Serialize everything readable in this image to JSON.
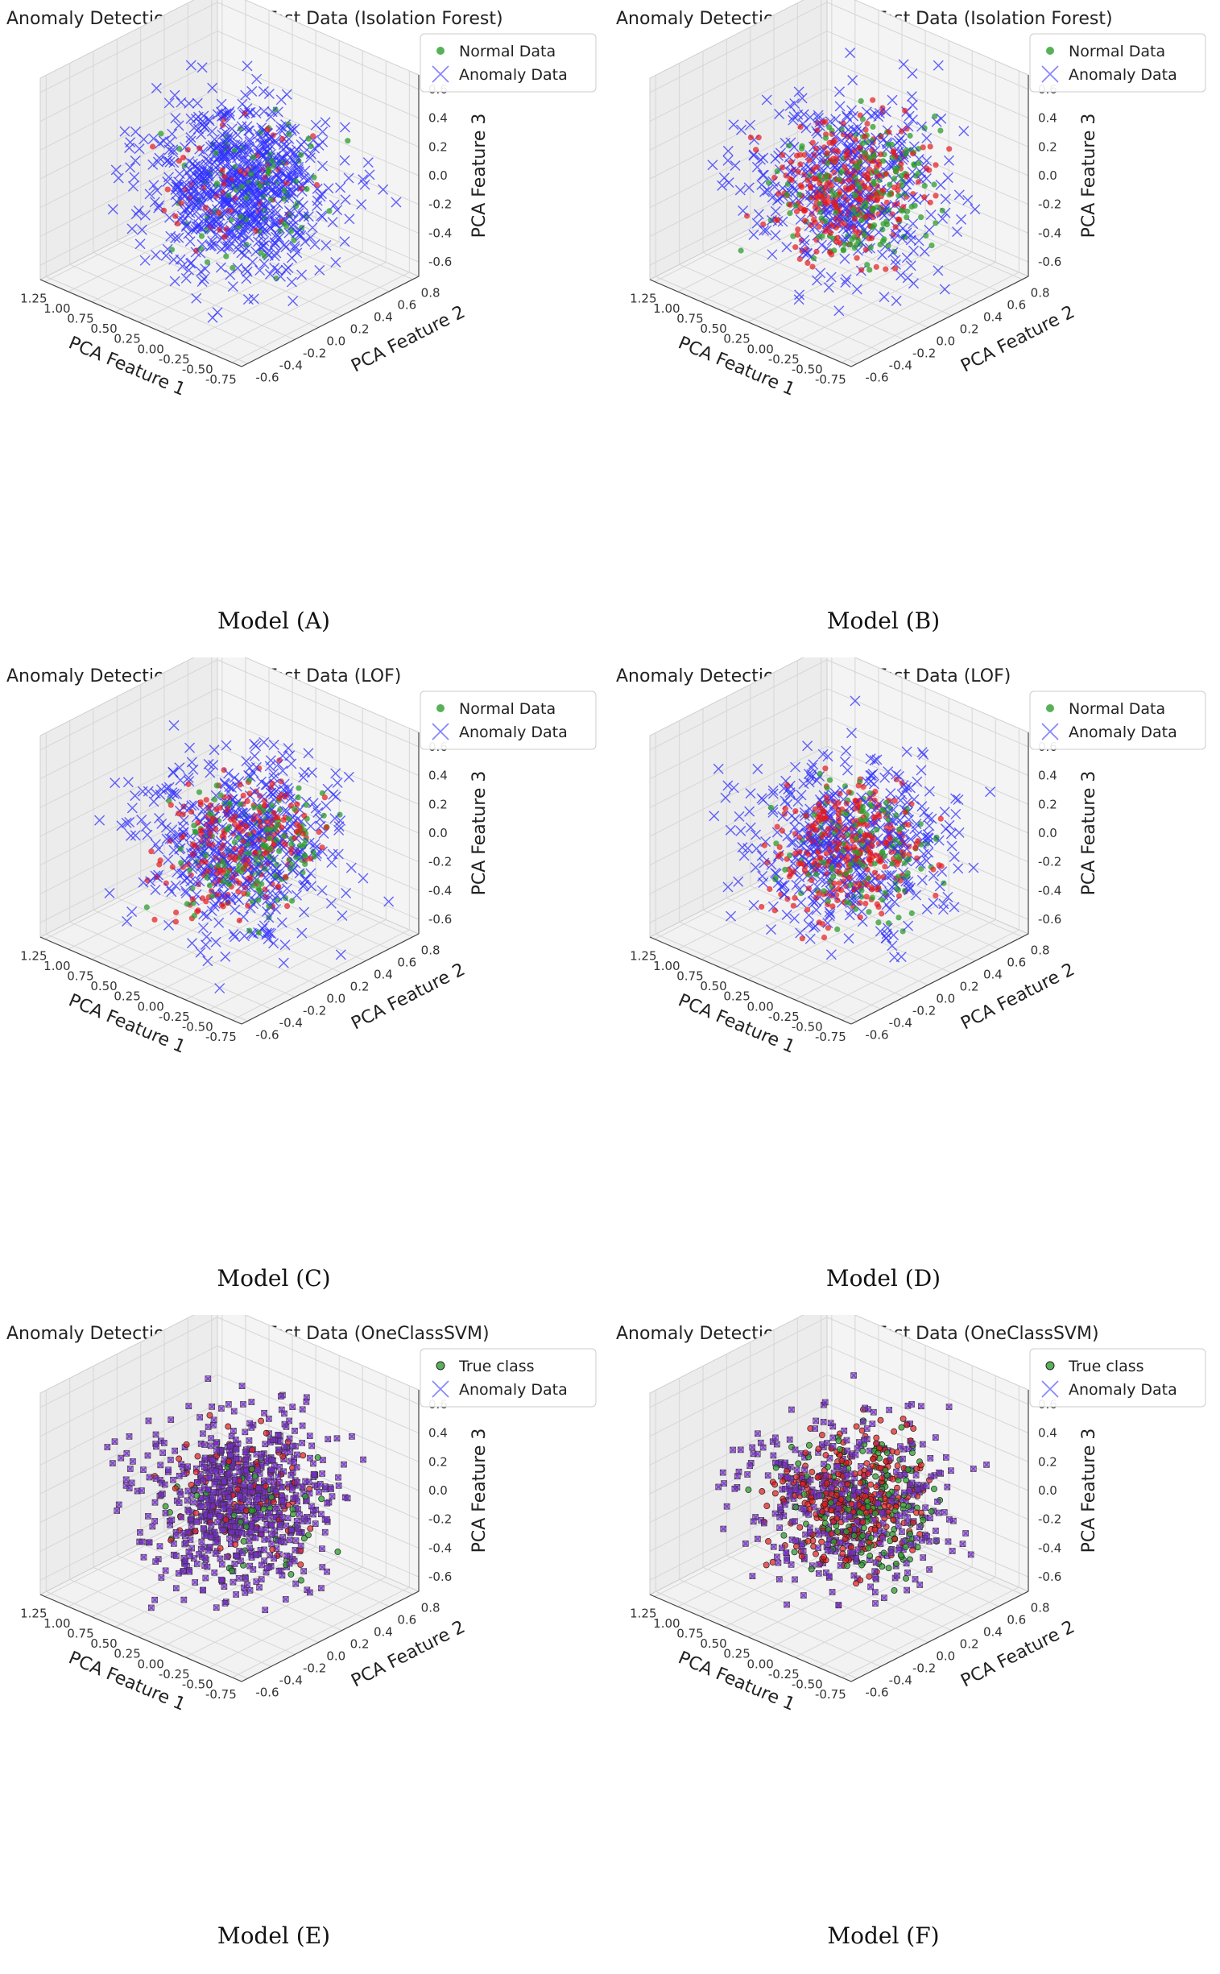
{
  "figure": {
    "panels": [
      {
        "caption": "Model (A)",
        "chart_data": {
          "type": "scatter",
          "title": "Anomaly Detection in Latent Test Data (Isolation Forest)",
          "xlabel": "PCA Feature 1",
          "ylabel": "PCA Feature 2",
          "zlabel": "PCA Feature 3",
          "xlim": [
            -0.85,
            1.3
          ],
          "ylim": [
            -0.65,
            0.85
          ],
          "zlim": [
            -0.7,
            0.7
          ],
          "xticks": [
            "-0.75",
            "-0.50",
            "-0.25",
            "0.00",
            "0.25",
            "0.50",
            "0.75",
            "1.00",
            "1.25"
          ],
          "yticks": [
            "-0.6",
            "-0.4",
            "-0.2",
            "0.0",
            "0.2",
            "0.4",
            "0.6",
            "0.8"
          ],
          "zticks": [
            "-0.6",
            "-0.4",
            "-0.2",
            "0.0",
            "0.2",
            "0.4",
            "0.6"
          ],
          "legend": [
            "Normal Data",
            "Anomaly Data"
          ],
          "legend_position": "top-right",
          "grid": true,
          "mix": {
            "green": 0.08,
            "red": 0.1,
            "anomaly": 0.82
          }
        }
      },
      {
        "caption": "Model (B)",
        "chart_data": {
          "type": "scatter",
          "title": "Anomaly Detection in Latent Test Data (Isolation Forest)",
          "xlabel": "PCA Feature 1",
          "ylabel": "PCA Feature 2",
          "zlabel": "PCA Feature 3",
          "xlim": [
            -0.85,
            1.3
          ],
          "ylim": [
            -0.65,
            0.85
          ],
          "zlim": [
            -0.7,
            0.7
          ],
          "xticks": [
            "-0.75",
            "-0.50",
            "-0.25",
            "0.00",
            "0.25",
            "0.50",
            "0.75",
            "1.00",
            "1.25"
          ],
          "yticks": [
            "-0.6",
            "-0.4",
            "-0.2",
            "0.0",
            "0.2",
            "0.4",
            "0.6",
            "0.8"
          ],
          "zticks": [
            "-0.6",
            "-0.4",
            "-0.2",
            "0.0",
            "0.2",
            "0.4",
            "0.6"
          ],
          "legend": [
            "Normal Data",
            "Anomaly Data"
          ],
          "legend_position": "top-right",
          "grid": true,
          "mix": {
            "green": 0.18,
            "red": 0.5,
            "anomaly": 0.32
          }
        }
      },
      {
        "caption": "Model (C)",
        "chart_data": {
          "type": "scatter",
          "title": "Anomaly Detection in Latent Test Data (LOF)",
          "xlabel": "PCA Feature 1",
          "ylabel": "PCA Feature 2",
          "zlabel": "PCA Feature 3",
          "xlim": [
            -0.85,
            1.3
          ],
          "ylim": [
            -0.65,
            0.85
          ],
          "zlim": [
            -0.7,
            0.7
          ],
          "xticks": [
            "-0.75",
            "-0.50",
            "-0.25",
            "0.00",
            "0.25",
            "0.50",
            "0.75",
            "1.00",
            "1.25"
          ],
          "yticks": [
            "-0.6",
            "-0.4",
            "-0.2",
            "0.0",
            "0.2",
            "0.4",
            "0.6",
            "0.8"
          ],
          "zticks": [
            "-0.6",
            "-0.4",
            "-0.2",
            "0.0",
            "0.2",
            "0.4",
            "0.6"
          ],
          "legend": [
            "Normal Data",
            "Anomaly Data"
          ],
          "legend_position": "top-right",
          "grid": true,
          "mix": {
            "green": 0.14,
            "red": 0.42,
            "anomaly": 0.44
          }
        }
      },
      {
        "caption": "Model (D)",
        "chart_data": {
          "type": "scatter",
          "title": "Anomaly Detection in Latent Test Data (LOF)",
          "xlabel": "PCA Feature 1",
          "ylabel": "PCA Feature 2",
          "zlabel": "PCA Feature 3",
          "xlim": [
            -0.85,
            1.3
          ],
          "ylim": [
            -0.65,
            0.85
          ],
          "zlim": [
            -0.7,
            0.7
          ],
          "xticks": [
            "-0.75",
            "-0.50",
            "-0.25",
            "0.00",
            "0.25",
            "0.50",
            "0.75",
            "1.00",
            "1.25"
          ],
          "yticks": [
            "-0.6",
            "-0.4",
            "-0.2",
            "0.0",
            "0.2",
            "0.4",
            "0.6",
            "0.8"
          ],
          "zticks": [
            "-0.6",
            "-0.4",
            "-0.2",
            "0.0",
            "0.2",
            "0.4",
            "0.6"
          ],
          "legend": [
            "Normal Data",
            "Anomaly Data"
          ],
          "legend_position": "top-right",
          "grid": true,
          "mix": {
            "green": 0.14,
            "red": 0.46,
            "anomaly": 0.4
          }
        }
      },
      {
        "caption": "Model (E)",
        "chart_data": {
          "type": "scatter",
          "title": "Anomaly Detection in Latent Test Data (OneClassSVM)",
          "xlabel": "PCA Feature 1",
          "ylabel": "PCA Feature 2",
          "zlabel": "PCA Feature 3",
          "xlim": [
            -0.85,
            1.3
          ],
          "ylim": [
            -0.65,
            0.85
          ],
          "zlim": [
            -0.7,
            0.7
          ],
          "xticks": [
            "-0.75",
            "-0.50",
            "-0.25",
            "0.00",
            "0.25",
            "0.50",
            "0.75",
            "1.00",
            "1.25"
          ],
          "yticks": [
            "-0.6",
            "-0.4",
            "-0.2",
            "0.0",
            "0.2",
            "0.4",
            "0.6",
            "0.8"
          ],
          "zticks": [
            "-0.6",
            "-0.4",
            "-0.2",
            "0.0",
            "0.2",
            "0.4",
            "0.6"
          ],
          "legend": [
            "True class",
            "Anomaly Data"
          ],
          "legend_position": "top-right",
          "grid": true,
          "mix": {
            "green": 0.06,
            "red": 0.14,
            "anomaly": 0.8
          }
        }
      },
      {
        "caption": "Model (F)",
        "chart_data": {
          "type": "scatter",
          "title": "Anomaly Detection in Latent Test Data (OneClassSVM)",
          "xlabel": "PCA Feature 1",
          "ylabel": "PCA Feature 2",
          "zlabel": "PCA Feature 3",
          "xlim": [
            -0.85,
            1.3
          ],
          "ylim": [
            -0.65,
            0.85
          ],
          "zlim": [
            -0.7,
            0.7
          ],
          "xticks": [
            "-0.75",
            "-0.50",
            "-0.25",
            "0.00",
            "0.25",
            "0.50",
            "0.75",
            "1.00",
            "1.25"
          ],
          "yticks": [
            "-0.6",
            "-0.4",
            "-0.2",
            "0.0",
            "0.2",
            "0.4",
            "0.6",
            "0.8"
          ],
          "zticks": [
            "-0.6",
            "-0.4",
            "-0.2",
            "0.0",
            "0.2",
            "0.4",
            "0.6"
          ],
          "legend": [
            "True class",
            "Anomaly Data"
          ],
          "legend_position": "top-right",
          "grid": true,
          "mix": {
            "green": 0.14,
            "red": 0.5,
            "anomaly": 0.36
          }
        }
      }
    ],
    "colors": {
      "normal": "#2e9d2e",
      "red": "#e41a1c",
      "anomaly": "#3030ff",
      "pane": "#f2f2f2",
      "grid": "#d6d6d6"
    }
  }
}
